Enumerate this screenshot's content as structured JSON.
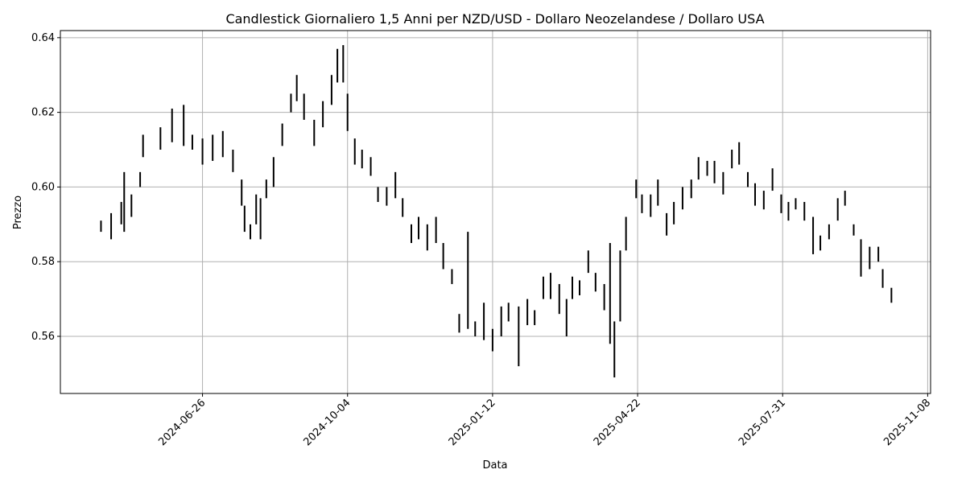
{
  "chart_data": {
    "type": "candlestick",
    "title": "Candlestick Giornaliero 1,5 Anni per NZD/USD - Dollaro Neozelandese / Dollaro USA",
    "xlabel": "Data",
    "ylabel": "Prezzo",
    "xlim": [
      "2024-03-20",
      "2025-11-10"
    ],
    "ylim": [
      0.5447,
      0.6419
    ],
    "x_ticks": [
      "2024-06-26",
      "2024-10-04",
      "2025-01-12",
      "2025-04-22",
      "2025-07-31",
      "2025-11-08"
    ],
    "y_ticks": [
      "0.56",
      "0.58",
      "0.60",
      "0.62",
      "0.64"
    ],
    "grid": true,
    "colors": {
      "wick": "#000000",
      "down_body": "#ff0000",
      "grid": "#b0b0b0"
    },
    "candles": [
      [
        "2024-04-17",
        0.588,
        0.591
      ],
      [
        "2024-04-24",
        0.586,
        0.593
      ],
      [
        "2024-05-01",
        0.59,
        0.596
      ],
      [
        "2024-05-03",
        0.588,
        0.604
      ],
      [
        "2024-05-08",
        0.592,
        0.598
      ],
      [
        "2024-05-14",
        0.6,
        0.604
      ],
      [
        "2024-05-16",
        0.608,
        0.614
      ],
      [
        "2024-05-28",
        0.61,
        0.616
      ],
      [
        "2024-06-05",
        0.612,
        0.621
      ],
      [
        "2024-06-13",
        0.611,
        0.622
      ],
      [
        "2024-06-19",
        0.61,
        0.614
      ],
      [
        "2024-06-26",
        0.606,
        0.613
      ],
      [
        "2024-07-03",
        0.607,
        0.614
      ],
      [
        "2024-07-10",
        0.608,
        0.615
      ],
      [
        "2024-07-17",
        0.604,
        0.61
      ],
      [
        "2024-07-23",
        0.595,
        0.602
      ],
      [
        "2024-07-25",
        0.588,
        0.595
      ],
      [
        "2024-07-29",
        0.586,
        0.59
      ],
      [
        "2024-08-02",
        0.59,
        0.598
      ],
      [
        "2024-08-05",
        0.586,
        0.597
      ],
      [
        "2024-08-09",
        0.597,
        0.602
      ],
      [
        "2024-08-14",
        0.6,
        0.608
      ],
      [
        "2024-08-20",
        0.611,
        0.617
      ],
      [
        "2024-08-26",
        0.62,
        0.625
      ],
      [
        "2024-08-30",
        0.623,
        0.63
      ],
      [
        "2024-09-04",
        0.618,
        0.625
      ],
      [
        "2024-09-11",
        0.611,
        0.618
      ],
      [
        "2024-09-17",
        0.616,
        0.623
      ],
      [
        "2024-09-23",
        0.622,
        0.63
      ],
      [
        "2024-09-27",
        0.628,
        0.637
      ],
      [
        "2024-10-01",
        0.628,
        0.638
      ],
      [
        "2024-10-04",
        0.615,
        0.625
      ],
      [
        "2024-10-09",
        0.606,
        0.613
      ],
      [
        "2024-10-14",
        0.605,
        0.61
      ],
      [
        "2024-10-20",
        0.603,
        0.608
      ],
      [
        "2024-10-25",
        0.596,
        0.6
      ],
      [
        "2024-10-31",
        0.595,
        0.6
      ],
      [
        "2024-11-06",
        0.597,
        0.604
      ],
      [
        "2024-11-11",
        0.592,
        0.597
      ],
      [
        "2024-11-17",
        0.585,
        0.59
      ],
      [
        "2024-11-22",
        0.586,
        0.592
      ],
      [
        "2024-11-28",
        0.583,
        0.59
      ],
      [
        "2024-12-04",
        0.585,
        0.592
      ],
      [
        "2024-12-09",
        0.578,
        0.585
      ],
      [
        "2024-12-15",
        0.574,
        0.578
      ],
      [
        "2024-12-20",
        0.561,
        0.566
      ],
      [
        "2024-12-26",
        0.562,
        0.588
      ],
      [
        "2024-12-31",
        0.56,
        0.564
      ],
      [
        "2025-01-06",
        0.559,
        0.569
      ],
      [
        "2025-01-12",
        0.556,
        0.562
      ],
      [
        "2025-01-18",
        0.56,
        0.568
      ],
      [
        "2025-01-23",
        0.564,
        0.569
      ],
      [
        "2025-01-30",
        0.552,
        0.568
      ],
      [
        "2025-02-05",
        0.563,
        0.57
      ],
      [
        "2025-02-10",
        0.563,
        0.567
      ],
      [
        "2025-02-16",
        0.57,
        0.576
      ],
      [
        "2025-02-21",
        0.57,
        0.577
      ],
      [
        "2025-02-27",
        0.566,
        0.574
      ],
      [
        "2025-03-04",
        0.56,
        0.57
      ],
      [
        "2025-03-08",
        0.57,
        0.576
      ],
      [
        "2025-03-13",
        0.571,
        0.575
      ],
      [
        "2025-03-19",
        0.577,
        0.583
      ],
      [
        "2025-03-24",
        0.572,
        0.577
      ],
      [
        "2025-03-30",
        0.567,
        0.574
      ],
      [
        "2025-04-03",
        0.558,
        0.585
      ],
      [
        "2025-04-06",
        0.549,
        0.564
      ],
      [
        "2025-04-10",
        0.564,
        0.583
      ],
      [
        "2025-04-14",
        0.583,
        0.592
      ],
      [
        "2025-04-21",
        0.597,
        0.602
      ],
      [
        "2025-04-25",
        0.593,
        0.598
      ],
      [
        "2025-05-01",
        0.592,
        0.598
      ],
      [
        "2025-05-06",
        0.595,
        0.602
      ],
      [
        "2025-05-12",
        0.587,
        0.593
      ],
      [
        "2025-05-17",
        0.59,
        0.596
      ],
      [
        "2025-05-23",
        0.594,
        0.6
      ],
      [
        "2025-05-29",
        0.597,
        0.602
      ],
      [
        "2025-06-03",
        0.602,
        0.608
      ],
      [
        "2025-06-09",
        0.603,
        0.607
      ],
      [
        "2025-06-14",
        0.601,
        0.607
      ],
      [
        "2025-06-20",
        0.598,
        0.604
      ],
      [
        "2025-06-26",
        0.605,
        0.61
      ],
      [
        "2025-07-01",
        0.606,
        0.612
      ],
      [
        "2025-07-07",
        0.6,
        0.604
      ],
      [
        "2025-07-12",
        0.595,
        0.601
      ],
      [
        "2025-07-18",
        0.594,
        0.599
      ],
      [
        "2025-07-24",
        0.599,
        0.605
      ],
      [
        "2025-07-30",
        0.593,
        0.598
      ],
      [
        "2025-08-04",
        0.591,
        0.596
      ],
      [
        "2025-08-09",
        0.594,
        0.597
      ],
      [
        "2025-08-15",
        0.591,
        0.596
      ],
      [
        "2025-08-21",
        0.582,
        0.592
      ],
      [
        "2025-08-26",
        0.583,
        0.587
      ],
      [
        "2025-09-01",
        0.586,
        0.59
      ],
      [
        "2025-09-07",
        0.591,
        0.597
      ],
      [
        "2025-09-12",
        0.595,
        0.599
      ],
      [
        "2025-09-18",
        0.587,
        0.59
      ],
      [
        "2025-09-23",
        0.576,
        0.586
      ],
      [
        "2025-09-29",
        0.578,
        0.584
      ],
      [
        "2025-10-05",
        0.58,
        0.584
      ],
      [
        "2025-10-08",
        0.573,
        0.578
      ],
      [
        "2025-10-14",
        0.569,
        0.573
      ]
    ],
    "candle_fields": [
      "date",
      "low",
      "high"
    ]
  }
}
